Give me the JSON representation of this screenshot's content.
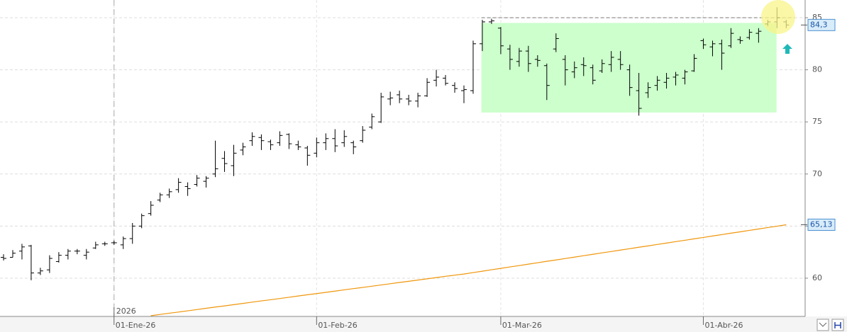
{
  "chart_data": {
    "type": "ohlc",
    "ylim": [
      56.33,
      86.7
    ],
    "yticks": [
      60,
      65,
      70,
      75,
      80,
      85
    ],
    "grid": true,
    "categories": [
      null,
      null,
      null,
      null,
      null,
      null,
      null,
      null,
      null,
      null,
      null,
      null,
      "01-Ene-26",
      null,
      null,
      null,
      null,
      null,
      null,
      null,
      null,
      null,
      null,
      null,
      null,
      null,
      null,
      null,
      null,
      null,
      null,
      null,
      null,
      null,
      "01-Feb-26",
      null,
      null,
      null,
      null,
      null,
      null,
      null,
      null,
      null,
      null,
      null,
      null,
      null,
      null,
      null,
      null,
      null,
      null,
      null,
      "01-Mar-26",
      null,
      null,
      null,
      null,
      null,
      null,
      null,
      null,
      null,
      null,
      null,
      null,
      null,
      null,
      null,
      null,
      null,
      null,
      null,
      null,
      null,
      "01-Abr-26",
      null,
      null,
      null,
      null,
      null,
      null,
      null,
      null,
      null
    ],
    "year_label": "2026",
    "open": [
      62.0,
      62.0,
      62.6,
      63.1,
      60.5,
      60.8,
      61.6,
      62.2,
      62.6,
      62.2,
      62.9,
      63.3,
      63.4,
      63.2,
      63.8,
      65.0,
      66.2,
      67.5,
      68.0,
      68.5,
      68.8,
      69.0,
      69.3,
      70.0,
      71.5,
      70.8,
      72.3,
      73.2,
      73.5,
      73.1,
      73.0,
      73.8,
      72.8,
      72.5,
      72.0,
      73.0,
      73.4,
      73.0,
      73.0,
      73.2,
      74.5,
      75.0,
      77.2,
      77.6,
      77.2,
      77.0,
      77.5,
      79.0,
      79.2,
      78.5,
      78.0,
      78.0,
      82.5,
      84.6,
      84.0,
      82.0,
      80.8,
      81.8,
      81.0,
      80.4,
      82.0,
      81.0,
      79.8,
      80.5,
      80.2,
      79.9,
      80.5,
      81.0,
      80.0,
      78.0,
      77.8,
      78.5,
      78.8,
      79.3,
      79.2,
      79.9,
      82.8,
      82.2,
      82.5,
      82.3,
      82.9,
      83.1,
      83.5,
      84.4,
      84.6,
      84.6
    ],
    "high": [
      62.3,
      62.7,
      63.3,
      63.2,
      61.0,
      62.2,
      62.5,
      62.8,
      62.8,
      62.8,
      63.5,
      63.5,
      63.6,
      64.0,
      65.3,
      66.2,
      67.4,
      68.2,
      68.6,
      69.6,
      69.2,
      69.9,
      69.8,
      73.2,
      72.2,
      72.8,
      73.0,
      74.0,
      73.8,
      73.3,
      74.1,
      73.9,
      73.2,
      72.7,
      73.5,
      73.9,
      74.3,
      74.2,
      73.2,
      74.6,
      75.8,
      77.8,
      77.9,
      78.0,
      77.6,
      77.8,
      79.2,
      80.0,
      79.5,
      78.8,
      78.5,
      82.8,
      84.8,
      84.9,
      84.1,
      82.4,
      82.1,
      82.3,
      81.4,
      80.6,
      83.5,
      81.4,
      80.8,
      81.2,
      80.5,
      81.0,
      81.8,
      81.8,
      80.5,
      79.7,
      78.8,
      79.4,
      79.7,
      79.8,
      80.0,
      81.5,
      83.0,
      82.8,
      82.9,
      84.0,
      83.2,
      83.9,
      84.0,
      84.8,
      86.0,
      84.8
    ],
    "low": [
      61.7,
      62.0,
      61.8,
      59.8,
      60.3,
      60.5,
      61.5,
      61.8,
      62.3,
      61.8,
      62.8,
      63.1,
      63.2,
      62.8,
      63.3,
      64.8,
      66.0,
      67.3,
      67.7,
      68.2,
      67.9,
      68.8,
      68.7,
      69.7,
      70.2,
      69.8,
      71.8,
      72.7,
      72.3,
      72.3,
      72.7,
      72.4,
      72.3,
      70.8,
      71.6,
      72.3,
      72.1,
      72.6,
      71.9,
      73.0,
      74.3,
      74.9,
      76.6,
      76.8,
      76.6,
      76.4,
      77.4,
      78.4,
      78.5,
      77.8,
      76.8,
      77.7,
      81.8,
      84.4,
      81.5,
      80.0,
      80.3,
      79.8,
      80.3,
      77.1,
      81.7,
      78.5,
      79.2,
      79.4,
      78.6,
      79.7,
      79.8,
      80.0,
      77.5,
      75.6,
      77.3,
      78.0,
      78.2,
      78.5,
      78.6,
      79.8,
      82.0,
      81.3,
      80.0,
      82.1,
      82.5,
      82.9,
      82.6,
      84.2,
      84.0,
      84.0
    ],
    "close": [
      61.9,
      62.4,
      63.0,
      60.5,
      60.7,
      61.9,
      62.2,
      62.6,
      62.6,
      62.5,
      63.2,
      63.3,
      63.4,
      63.8,
      65.0,
      66.0,
      67.0,
      68.0,
      68.3,
      69.2,
      68.6,
      69.6,
      69.6,
      70.5,
      71.0,
      72.0,
      72.6,
      73.6,
      73.2,
      72.8,
      73.7,
      72.9,
      72.6,
      71.8,
      73.0,
      73.4,
      72.7,
      73.6,
      72.6,
      74.2,
      75.5,
      77.4,
      77.3,
      77.2,
      77.0,
      77.5,
      78.8,
      79.3,
      78.7,
      78.2,
      78.1,
      82.5,
      84.6,
      84.7,
      82.3,
      81.0,
      81.8,
      80.6,
      80.9,
      78.5,
      83.0,
      80.0,
      80.2,
      80.4,
      79.0,
      80.6,
      81.2,
      80.5,
      78.3,
      76.3,
      78.3,
      79.0,
      79.2,
      79.5,
      79.8,
      81.1,
      82.4,
      82.5,
      81.6,
      83.5,
      82.8,
      83.6,
      83.7,
      84.6,
      85.0,
      84.3
    ],
    "moving_average": {
      "color": "#f0960a",
      "values": [
        null,
        null,
        null,
        null,
        null,
        null,
        null,
        null,
        null,
        null,
        null,
        null,
        null,
        null,
        null,
        null,
        56.4,
        56.52,
        56.64,
        56.75,
        56.87,
        56.99,
        57.11,
        57.23,
        57.34,
        57.46,
        57.58,
        57.7,
        57.82,
        57.93,
        58.05,
        58.17,
        58.29,
        58.41,
        58.52,
        58.64,
        58.76,
        58.88,
        59.0,
        59.11,
        59.23,
        59.35,
        59.47,
        59.59,
        59.7,
        59.82,
        59.94,
        60.06,
        60.18,
        60.29,
        60.4,
        60.54,
        60.67,
        60.81,
        60.94,
        61.08,
        61.21,
        61.35,
        61.48,
        61.62,
        61.75,
        61.89,
        62.02,
        62.16,
        62.29,
        62.43,
        62.56,
        62.7,
        62.83,
        62.97,
        63.1,
        63.24,
        63.37,
        63.51,
        63.64,
        63.78,
        63.91,
        64.05,
        64.18,
        64.32,
        64.45,
        64.59,
        64.72,
        64.86,
        64.99,
        65.13
      ]
    },
    "last_price": {
      "value": 84.3,
      "label": "84,3"
    },
    "ma_last": {
      "value": 65.13,
      "label": "65,13"
    },
    "zone": {
      "top": 84.5,
      "bottom": 75.9,
      "color": "#ccffcc"
    },
    "resistance_level": 85
  }
}
